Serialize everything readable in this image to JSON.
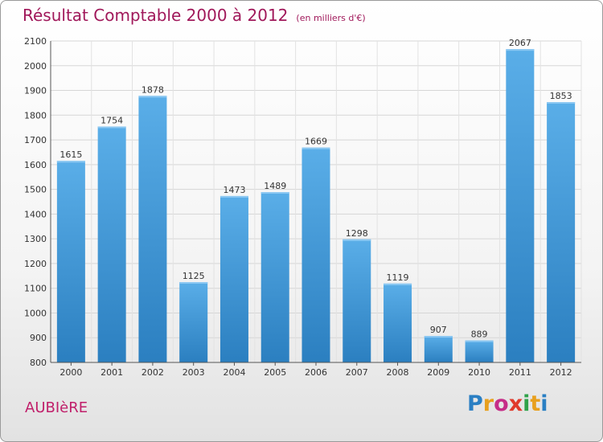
{
  "title": {
    "main": "Résultat Comptable 2000 à 2012",
    "sub": "(en milliers d'€)"
  },
  "footer": {
    "commune": "AUBIèRE",
    "logo_letters": [
      "P",
      "r",
      "o",
      "x",
      "i",
      "t",
      "i"
    ],
    "logo_colors": [
      "#2a7fc3",
      "#e8a01e",
      "#c62d88",
      "#e03a2b",
      "#2fa24a",
      "#e8a01e",
      "#2a7fc3"
    ]
  },
  "chart_data": {
    "type": "bar",
    "categories": [
      "2000",
      "2001",
      "2002",
      "2003",
      "2004",
      "2005",
      "2006",
      "2007",
      "2008",
      "2009",
      "2010",
      "2011",
      "2012"
    ],
    "values": [
      1615,
      1754,
      1878,
      1125,
      1473,
      1489,
      1669,
      1298,
      1119,
      907,
      889,
      2067,
      1853
    ],
    "ylim": [
      800,
      2100
    ],
    "yticks": [
      800,
      900,
      1000,
      1100,
      1200,
      1300,
      1400,
      1500,
      1600,
      1700,
      1800,
      1900,
      2000,
      2100
    ],
    "grid": true,
    "bar_color_light": "#5aaee8",
    "bar_color_dark": "#2b7fc0"
  }
}
